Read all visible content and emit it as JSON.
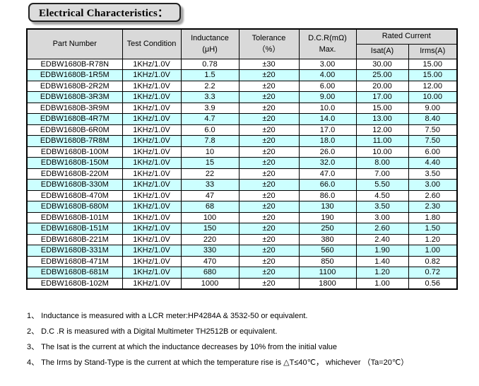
{
  "title": "Electrical Characteristics：",
  "colors": {
    "header_bg": "#d9d9d9",
    "alt_row_bg": "#ccffff",
    "title_box_bg": "#dcdcdc"
  },
  "table": {
    "headers": {
      "part_number": "Part Number",
      "test_condition": "Test Condition",
      "inductance_line1": "Inductance",
      "inductance_line2": "(μH)",
      "tolerance_line1": "Tolerance",
      "tolerance_line2": "（%）",
      "dcr_line1": "D.C.R(mΩ)",
      "dcr_line2": "Max.",
      "rated_current": "Rated Current",
      "isat": "Isat(A)",
      "irms": "Irms(A)"
    },
    "rows": [
      [
        "EDBW1680B-R78N",
        "1KHz/1.0V",
        "0.78",
        "±30",
        "3.00",
        "30.00",
        "15.00"
      ],
      [
        "EDBW1680B-1R5M",
        "1KHz/1.0V",
        "1.5",
        "±20",
        "4.00",
        "25.00",
        "15.00"
      ],
      [
        "EDBW1680B-2R2M",
        "1KHz/1.0V",
        "2.2",
        "±20",
        "6.00",
        "20.00",
        "12.00"
      ],
      [
        "EDBW1680B-3R3M",
        "1KHz/1.0V",
        "3.3",
        "±20",
        "9.00",
        "17.00",
        "10.00"
      ],
      [
        "EDBW1680B-3R9M",
        "1KHz/1.0V",
        "3.9",
        "±20",
        "10.0",
        "15.00",
        "9.00"
      ],
      [
        "EDBW1680B-4R7M",
        "1KHz/1.0V",
        "4.7",
        "±20",
        "14.0",
        "13.00",
        "8.40"
      ],
      [
        "EDBW1680B-6R0M",
        "1KHz/1.0V",
        "6.0",
        "±20",
        "17.0",
        "12.00",
        "7.50"
      ],
      [
        "EDBW1680B-7R8M",
        "1KHz/1.0V",
        "7.8",
        "±20",
        "18.0",
        "11.00",
        "7.50"
      ],
      [
        "EDBW1680B-100M",
        "1KHz/1.0V",
        "10",
        "±20",
        "26.0",
        "10.00",
        "6.00"
      ],
      [
        "EDBW1680B-150M",
        "1KHz/1.0V",
        "15",
        "±20",
        "32.0",
        "8.00",
        "4.40"
      ],
      [
        "EDBW1680B-220M",
        "1KHz/1.0V",
        "22",
        "±20",
        "47.0",
        "7.00",
        "3.50"
      ],
      [
        "EDBW1680B-330M",
        "1KHz/1.0V",
        "33",
        "±20",
        "66.0",
        "5.50",
        "3.00"
      ],
      [
        "EDBW1680B-470M",
        "1KHz/1.0V",
        "47",
        "±20",
        "86.0",
        "4.50",
        "2.60"
      ],
      [
        "EDBW1680B-680M",
        "1KHz/1.0V",
        "68",
        "±20",
        "130",
        "3.50",
        "2.30"
      ],
      [
        "EDBW1680B-101M",
        "1KHz/1.0V",
        "100",
        "±20",
        "190",
        "3.00",
        "1.80"
      ],
      [
        "EDBW1680B-151M",
        "1KHz/1.0V",
        "150",
        "±20",
        "250",
        "2.60",
        "1.50"
      ],
      [
        "EDBW1680B-221M",
        "1KHz/1.0V",
        "220",
        "±20",
        "380",
        "2.40",
        "1.20"
      ],
      [
        "EDBW1680B-331M",
        "1KHz/1.0V",
        "330",
        "±20",
        "560",
        "1.90",
        "1.00"
      ],
      [
        "EDBW1680B-471M",
        "1KHz/1.0V",
        "470",
        "±20",
        "850",
        "1.40",
        "0.82"
      ],
      [
        "EDBW1680B-681M",
        "1KHz/1.0V",
        "680",
        "±20",
        "1100",
        "1.20",
        "0.72"
      ],
      [
        "EDBW1680B-102M",
        "1KHz/1.0V",
        "1000",
        "±20",
        "1800",
        "1.00",
        "0.56"
      ]
    ]
  },
  "notes": [
    "1、 Inductance is measured with a LCR meter:HP4284A & 3532-50 or equivalent.",
    "2、 D.C .R is measured with a Digital Multimeter TH2512B or equivalent.",
    "3、 The Isat is the current at which the inductance decreases by 10% from the initial value",
    "4、 The Irms by Stand-Type is the current at which the temperature rise is △T≤40℃， whichever （Ta=20℃）"
  ]
}
